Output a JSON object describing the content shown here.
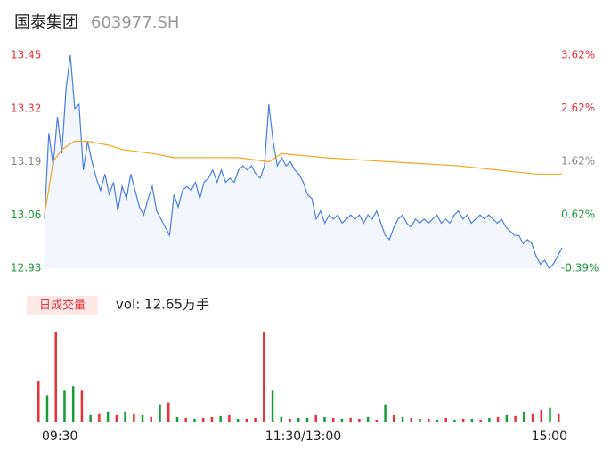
{
  "header": {
    "name": "国泰集团",
    "code": "603977.SH"
  },
  "chart_data": [
    {
      "type": "line",
      "ylim": [
        12.93,
        13.45
      ],
      "yticks": [
        13.45,
        13.32,
        13.19,
        13.06,
        12.93
      ],
      "ytick_colors": [
        "#e8313b",
        "#e8313b",
        "#888888",
        "#1a9a3a",
        "#1a9a3a"
      ],
      "y2lim": [
        -0.39,
        3.62
      ],
      "y2ticks": [
        {
          "value": 3.62,
          "label": "3.62%"
        },
        {
          "value": 2.62,
          "label": "2.62%"
        },
        {
          "value": 1.62,
          "label": "1.62%"
        },
        {
          "value": 0.62,
          "label": "0.62%"
        },
        {
          "value": -0.39,
          "label": "-0.39%"
        }
      ],
      "xlim": [
        0,
        240
      ],
      "series": [
        {
          "color": "#4a7fe0",
          "fill": "#f3f6fd",
          "x": [
            0,
            2,
            4,
            6,
            8,
            10,
            12,
            14,
            16,
            18,
            20,
            22,
            24,
            26,
            28,
            30,
            32,
            34,
            36,
            38,
            40,
            42,
            44,
            46,
            48,
            50,
            52,
            54,
            56,
            58,
            60,
            62,
            64,
            66,
            68,
            70,
            72,
            74,
            76,
            78,
            80,
            82,
            84,
            86,
            88,
            90,
            92,
            94,
            96,
            98,
            100,
            102,
            104,
            106,
            108,
            110,
            112,
            114,
            116,
            118,
            120,
            122,
            124,
            126,
            128,
            130,
            132,
            134,
            136,
            138,
            140,
            142,
            144,
            146,
            148,
            150,
            152,
            154,
            156,
            158,
            160,
            162,
            164,
            166,
            168,
            170,
            172,
            174,
            176,
            178,
            180,
            182,
            184,
            186,
            188,
            190,
            192,
            194,
            196,
            198,
            200,
            202,
            204,
            206,
            208,
            210,
            212,
            214,
            216,
            218,
            220,
            222,
            224,
            226,
            228,
            230,
            232,
            234,
            236,
            238,
            240
          ],
          "values": [
            13.05,
            13.26,
            13.18,
            13.3,
            13.21,
            13.37,
            13.45,
            13.32,
            13.33,
            13.17,
            13.24,
            13.19,
            13.15,
            13.12,
            13.16,
            13.11,
            13.14,
            13.07,
            13.13,
            13.1,
            13.16,
            13.12,
            13.08,
            13.06,
            13.1,
            13.13,
            13.07,
            13.05,
            13.03,
            13.01,
            13.11,
            13.08,
            13.12,
            13.13,
            13.12,
            13.14,
            13.1,
            13.14,
            13.15,
            13.17,
            13.14,
            13.17,
            13.14,
            13.15,
            13.14,
            13.17,
            13.18,
            13.17,
            13.18,
            13.16,
            13.15,
            13.18,
            13.33,
            13.24,
            13.18,
            13.2,
            13.18,
            13.19,
            13.17,
            13.16,
            13.14,
            13.11,
            13.1,
            13.05,
            13.07,
            13.04,
            13.06,
            13.05,
            13.06,
            13.04,
            13.05,
            13.06,
            13.05,
            13.06,
            13.04,
            13.06,
            13.05,
            13.07,
            13.04,
            13.01,
            13.0,
            13.03,
            13.05,
            13.06,
            13.04,
            13.03,
            13.05,
            13.04,
            13.05,
            13.04,
            13.05,
            13.06,
            13.04,
            13.05,
            13.04,
            13.06,
            13.07,
            13.05,
            13.06,
            13.04,
            13.05,
            13.06,
            13.05,
            13.06,
            13.05,
            13.04,
            13.05,
            13.03,
            13.02,
            13.01,
            13.01,
            12.99,
            13.0,
            12.99,
            12.96,
            12.94,
            12.95,
            12.93,
            12.94,
            12.96,
            12.98
          ]
        },
        {
          "color": "#f5a623",
          "x": [
            0,
            4,
            8,
            14,
            20,
            30,
            36,
            50,
            60,
            90,
            104,
            110,
            130,
            160,
            192,
            228,
            240
          ],
          "values": [
            13.06,
            13.19,
            13.22,
            13.24,
            13.24,
            13.23,
            13.22,
            13.21,
            13.2,
            13.2,
            13.19,
            13.21,
            13.2,
            13.19,
            13.18,
            13.16,
            13.16
          ]
        }
      ],
      "xticks": [
        {
          "value": 0,
          "label": "09:30"
        },
        {
          "value": 120,
          "label": "11:30/13:00"
        },
        {
          "value": 240,
          "label": "15:00"
        }
      ]
    },
    {
      "type": "bar",
      "label": "日成交量",
      "summary": "vol: 12.65万手",
      "xlim": [
        0,
        240
      ],
      "ylim": [
        0,
        7000
      ],
      "x": [
        0,
        4,
        8,
        12,
        16,
        20,
        24,
        28,
        32,
        36,
        40,
        44,
        48,
        52,
        56,
        60,
        64,
        68,
        72,
        76,
        80,
        84,
        88,
        92,
        96,
        100,
        104,
        108,
        112,
        116,
        120,
        124,
        128,
        132,
        136,
        140,
        144,
        148,
        152,
        156,
        160,
        164,
        168,
        172,
        176,
        180,
        184,
        188,
        192,
        196,
        200,
        204,
        208,
        212,
        216,
        220,
        224,
        228,
        232,
        236,
        240
      ],
      "values": [
        3150,
        2100,
        7000,
        2450,
        2800,
        2450,
        560,
        700,
        840,
        560,
        840,
        700,
        560,
        420,
        1400,
        1540,
        420,
        350,
        280,
        350,
        420,
        490,
        560,
        280,
        280,
        350,
        7000,
        2450,
        420,
        280,
        350,
        350,
        560,
        420,
        350,
        280,
        350,
        280,
        420,
        210,
        1400,
        560,
        420,
        350,
        280,
        280,
        210,
        350,
        210,
        280,
        280,
        210,
        350,
        420,
        560,
        490,
        840,
        700,
        980,
        1120,
        700
      ],
      "colors": [
        "#e8313b",
        "#1a9a3a",
        "#e8313b",
        "#1a9a3a",
        "#1a9a3a",
        "#e8313b",
        "#1a9a3a",
        "#e8313b",
        "#1a9a3a",
        "#e8313b",
        "#1a9a3a",
        "#e8313b",
        "#1a9a3a",
        "#e8313b",
        "#1a9a3a",
        "#e8313b",
        "#1a9a3a",
        "#e8313b",
        "#1a9a3a",
        "#e8313b",
        "#e8313b",
        "#1a9a3a",
        "#e8313b",
        "#1a9a3a",
        "#e8313b",
        "#e8313b",
        "#e8313b",
        "#1a9a3a",
        "#1a9a3a",
        "#e8313b",
        "#1a9a3a",
        "#1a9a3a",
        "#e8313b",
        "#1a9a3a",
        "#e8313b",
        "#1a9a3a",
        "#e8313b",
        "#e8313b",
        "#1a9a3a",
        "#e8313b",
        "#1a9a3a",
        "#e8313b",
        "#1a9a3a",
        "#e8313b",
        "#1a9a3a",
        "#e8313b",
        "#1a9a3a",
        "#e8313b",
        "#1a9a3a",
        "#e8313b",
        "#1a9a3a",
        "#e8313b",
        "#1a9a3a",
        "#e8313b",
        "#1a9a3a",
        "#e8313b",
        "#1a9a3a",
        "#e8313b",
        "#e8313b",
        "#1a9a3a",
        "#e8313b"
      ]
    }
  ]
}
